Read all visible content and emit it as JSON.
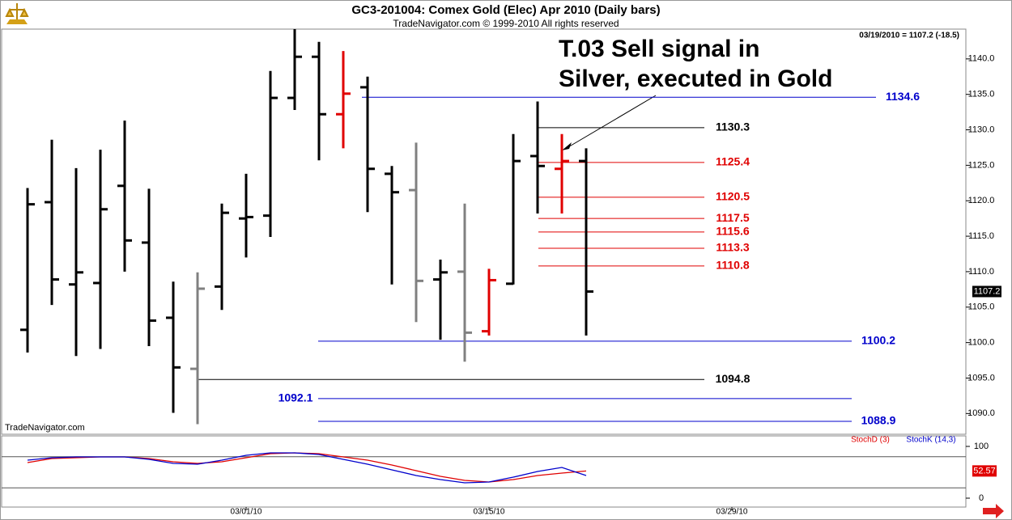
{
  "chart_data": [
    {
      "type": "ohlc",
      "title": "GC3-201004:  Comex Gold (Elec) Apr 2010  (Daily bars)",
      "subtitle": "TradeNavigator.com © 1999-2010 All rights reserved",
      "readout": "03/19/2010 = 1107.2 (-18.5)",
      "watermark": "TradeNavigator.com",
      "annotation": [
        "T.03 Sell signal in",
        "Silver, executed in Gold"
      ],
      "open": [
        1101.8,
        1119.8,
        1108.2,
        1108.4,
        1122.1,
        1114.1,
        1103.5,
        1096.3,
        1107.9,
        1117.5,
        1117.9,
        1134.5,
        1140.3,
        1132.2,
        1136.0,
        1123.8,
        1121.5,
        1108.9,
        1110.0,
        1101.6,
        1108.3,
        1126.3,
        1124.5,
        1125.6
      ],
      "high": [
        1121.8,
        1128.6,
        1124.6,
        1127.2,
        1131.3,
        1121.7,
        1108.6,
        1109.9,
        1119.6,
        1123.8,
        1138.3,
        1144.2,
        1142.4,
        1141.1,
        1137.5,
        1124.9,
        1128.2,
        1111.7,
        1119.6,
        1110.4,
        1129.4,
        1134.0,
        1129.4,
        1127.4
      ],
      "low": [
        1098.6,
        1105.3,
        1098.1,
        1099.1,
        1110.0,
        1099.5,
        1090.1,
        1088.5,
        1104.6,
        1112.0,
        1114.9,
        1132.8,
        1125.7,
        1127.4,
        1118.4,
        1108.2,
        1102.9,
        1100.4,
        1097.3,
        1101.0,
        1108.2,
        1118.2,
        1118.2,
        1101.0
      ],
      "close": [
        1119.5,
        1108.9,
        1109.9,
        1118.8,
        1114.4,
        1103.1,
        1096.5,
        1107.6,
        1118.3,
        1117.7,
        1134.5,
        1140.3,
        1132.2,
        1135.1,
        1124.5,
        1121.2,
        1108.7,
        1109.9,
        1101.4,
        1108.8,
        1125.6,
        1124.9,
        1125.6,
        1107.2
      ],
      "colors": [
        "#000000",
        "#000000",
        "#000000",
        "#000000",
        "#000000",
        "#000000",
        "#000000",
        "#808080",
        "#000000",
        "#000000",
        "#000000",
        "#000000",
        "#000000",
        "#e00000",
        "#000000",
        "#000000",
        "#808080",
        "#000000",
        "#808080",
        "#e00000",
        "#000000",
        "#000000",
        "#e00000",
        "#000000"
      ],
      "levels": [
        {
          "value": 1134.6,
          "color": "#0000cc"
        },
        {
          "value": 1130.3,
          "color": "#000000"
        },
        {
          "value": 1125.4,
          "color": "#e00000"
        },
        {
          "value": 1120.5,
          "color": "#e00000"
        },
        {
          "value": 1117.5,
          "color": "#e00000"
        },
        {
          "value": 1115.6,
          "color": "#e00000"
        },
        {
          "value": 1113.3,
          "color": "#e00000"
        },
        {
          "value": 1110.8,
          "color": "#e00000"
        },
        {
          "value": 1100.2,
          "color": "#0000cc"
        },
        {
          "value": 1094.8,
          "color": "#000000"
        },
        {
          "value": 1092.1,
          "color": "#0000cc"
        },
        {
          "value": 1088.9,
          "color": "#0000cc"
        }
      ],
      "xlim": [
        -1.1,
        38.6
      ],
      "xticks": [
        {
          "value": 9,
          "label": "03/01/10"
        },
        {
          "value": 19,
          "label": "03/15/10"
        },
        {
          "value": 29,
          "label": "03/29/10"
        }
      ],
      "ylim": [
        1087.3,
        1144.2
      ],
      "yticks": [
        {
          "value": 1090,
          "label": "1090.0"
        },
        {
          "value": 1095,
          "label": "1095.0"
        },
        {
          "value": 1100,
          "label": "1100.0"
        },
        {
          "value": 1105,
          "label": "1105.0"
        },
        {
          "value": 1110,
          "label": "1110.0"
        },
        {
          "value": 1115,
          "label": "1115.0"
        },
        {
          "value": 1120,
          "label": "1120.0"
        },
        {
          "value": 1125,
          "label": "1125.0"
        },
        {
          "value": 1130,
          "label": "1130.0"
        },
        {
          "value": 1135,
          "label": "1135.0"
        },
        {
          "value": 1140,
          "label": "1140.0"
        }
      ]
    },
    {
      "type": "line",
      "series": [
        {
          "name": "StochD (3)",
          "color": "#e00000",
          "values": [
            68.8,
            76.6,
            78.1,
            79.7,
            79.7,
            76.6,
            70.3,
            67.2,
            70.3,
            78.1,
            85.9,
            87.5,
            85.9,
            79.7,
            73.4,
            64.1,
            53.1,
            42.2,
            34.4,
            31.3,
            35.9,
            43.8,
            48.4,
            52.57
          ]
        },
        {
          "name": "StochK (14,3)",
          "color": "#0000cc",
          "values": [
            73.4,
            78.1,
            79.7,
            79.7,
            79.7,
            75.0,
            67.2,
            65.6,
            73.4,
            82.8,
            87.5,
            87.5,
            84.4,
            75.0,
            65.6,
            54.7,
            43.8,
            35.9,
            29.7,
            31.3,
            40.6,
            51.6,
            59.4,
            43.8
          ]
        }
      ],
      "ref_lines": [
        20,
        80
      ],
      "xlim": [
        -1.1,
        38.6
      ],
      "ylim": [
        -18.75,
        118.75
      ],
      "yticks": [
        0,
        100
      ]
    }
  ]
}
